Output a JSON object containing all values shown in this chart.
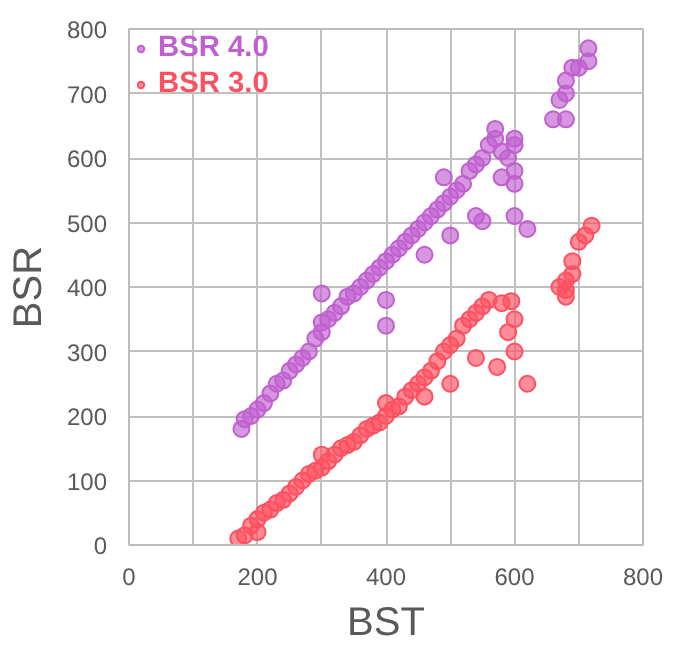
{
  "chart_data": {
    "type": "scatter",
    "xlabel": "BST",
    "ylabel": "BSR",
    "xlim": [
      0,
      800
    ],
    "ylim": [
      0,
      800
    ],
    "xticks": [
      0,
      {
        "value": 100,
        "label": null
      },
      200,
      {
        "value": 300,
        "label": null
      },
      400,
      {
        "value": 500,
        "label": null
      },
      600,
      {
        "value": 700,
        "label": null
      },
      800
    ],
    "yticks": [
      0,
      100,
      200,
      300,
      400,
      500,
      600,
      700,
      800
    ],
    "grid": true,
    "legend": "top left",
    "marker": "circle",
    "series": [
      {
        "name": "BSR 4.0",
        "color": "#c060d0",
        "x": [
          175,
          180,
          190,
          200,
          210,
          220,
          230,
          240,
          250,
          260,
          270,
          280,
          290,
          300,
          300,
          310,
          320,
          330,
          340,
          350,
          360,
          370,
          380,
          390,
          400,
          400,
          410,
          420,
          430,
          440,
          450,
          460,
          470,
          480,
          490,
          500,
          510,
          520,
          530,
          540,
          550,
          560,
          570,
          580,
          590,
          600,
          600,
          600,
          540,
          500,
          460,
          490,
          620,
          580,
          300,
          400,
          550,
          570,
          600,
          600,
          660,
          680,
          670,
          680,
          690,
          700,
          715,
          715,
          680
        ],
        "values": [
          180,
          195,
          200,
          210,
          220,
          235,
          250,
          255,
          270,
          280,
          290,
          300,
          320,
          330,
          345,
          350,
          360,
          370,
          385,
          390,
          400,
          410,
          420,
          430,
          440,
          380,
          450,
          460,
          470,
          480,
          490,
          500,
          510,
          520,
          530,
          540,
          550,
          560,
          580,
          590,
          600,
          620,
          630,
          610,
          600,
          580,
          620,
          560,
          510,
          480,
          450,
          570,
          490,
          570,
          390,
          340,
          502,
          645,
          630,
          510,
          660,
          660,
          690,
          720,
          740,
          740,
          770,
          750,
          700
        ]
      },
      {
        "name": "BSR 3.0",
        "color": "#ff5060",
        "x": [
          170,
          180,
          190,
          200,
          200,
          210,
          220,
          230,
          240,
          250,
          260,
          270,
          280,
          290,
          300,
          300,
          310,
          320,
          330,
          340,
          350,
          360,
          370,
          380,
          390,
          400,
          400,
          410,
          420,
          430,
          440,
          450,
          460,
          470,
          480,
          490,
          500,
          510,
          520,
          530,
          540,
          550,
          560,
          580,
          595,
          600,
          590,
          600,
          573,
          620,
          500,
          460,
          540,
          670,
          680,
          690,
          700,
          710,
          720,
          680,
          690,
          680
        ],
        "values": [
          10,
          15,
          30,
          20,
          40,
          50,
          55,
          65,
          70,
          80,
          90,
          100,
          110,
          115,
          120,
          140,
          130,
          140,
          150,
          155,
          160,
          170,
          180,
          185,
          190,
          200,
          220,
          210,
          215,
          230,
          240,
          250,
          260,
          270,
          285,
          300,
          310,
          320,
          340,
          350,
          360,
          370,
          380,
          375,
          378,
          350,
          330,
          300,
          276,
          250,
          250,
          230,
          290,
          400,
          410,
          440,
          470,
          480,
          495,
          385,
          420,
          395
        ]
      }
    ]
  }
}
